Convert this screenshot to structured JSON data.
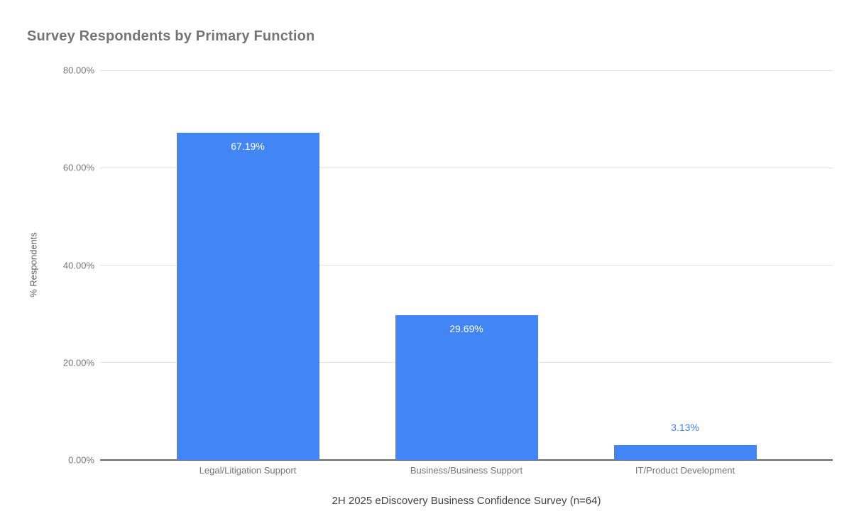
{
  "chart_data": {
    "type": "bar",
    "title": "Survey Respondents by Primary Function",
    "categories": [
      "Legal/Litigation Support",
      "Business/Business Support",
      "IT/Product Development"
    ],
    "values": [
      67.19,
      29.69,
      3.13
    ],
    "value_labels": [
      "67.19%",
      "29.69%",
      "3.13%"
    ],
    "xlabel": "2H 2025 eDiscovery Business Confidence Survey (n=64)",
    "ylabel": "% Respondents",
    "ylim": [
      0,
      80
    ],
    "ytick_labels": [
      "0.00%",
      "20.00%",
      "40.00%",
      "60.00%",
      "80.00%"
    ],
    "ytick_values": [
      0,
      20,
      40,
      60,
      80
    ],
    "grid": true,
    "legend": "none",
    "colors": {
      "bar": "#4285f4",
      "label_inside": "#ffffff",
      "label_outside": "#4285f4",
      "title_text": "#757575",
      "axis_text": "#757575",
      "gridline": "#e0e0e0",
      "baseline": "#666666"
    }
  }
}
